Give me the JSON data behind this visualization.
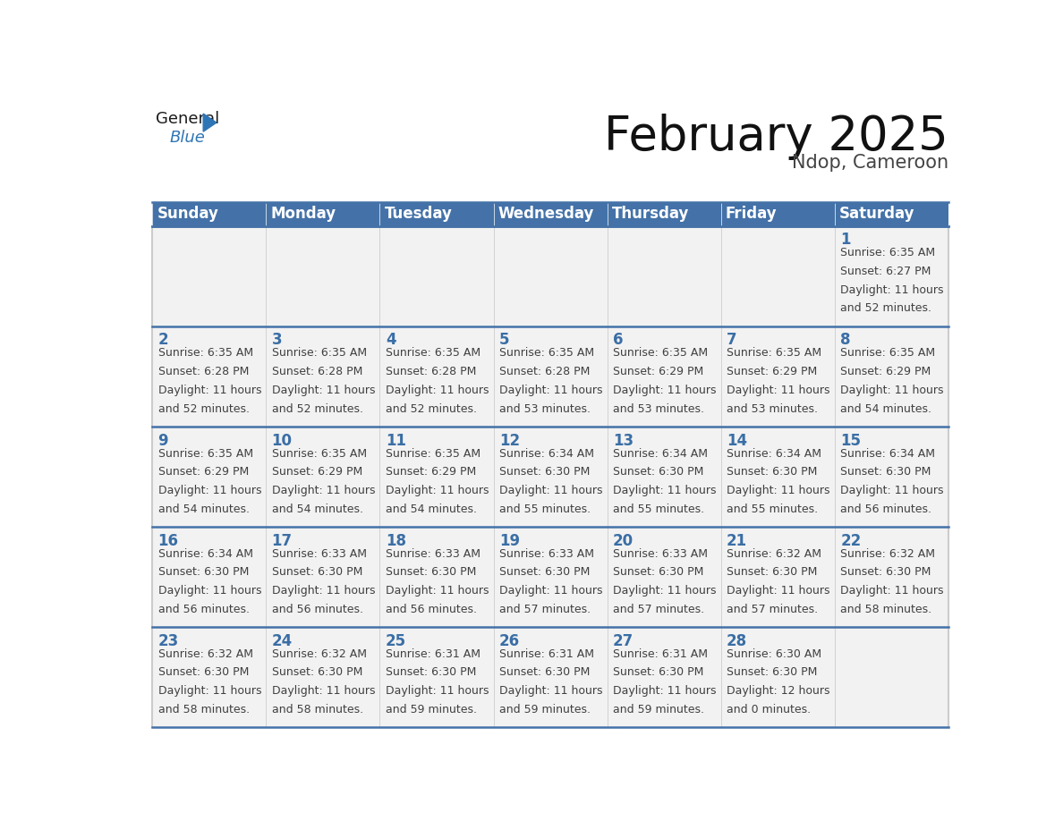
{
  "title": "February 2025",
  "subtitle": "Ndop, Cameroon",
  "days_of_week": [
    "Sunday",
    "Monday",
    "Tuesday",
    "Wednesday",
    "Thursday",
    "Friday",
    "Saturday"
  ],
  "header_bg": "#4472a8",
  "header_text": "#ffffff",
  "cell_bg": "#f2f2f2",
  "day_num_color": "#3a6ea5",
  "info_text_color": "#404040",
  "row_border_color": "#4472a8",
  "col_border_color": "#cccccc",
  "calendar_data": [
    [
      null,
      null,
      null,
      null,
      null,
      null,
      {
        "day": "1",
        "sunrise": "6:35 AM",
        "sunset": "6:27 PM",
        "daylight_line1": "Daylight: 11 hours",
        "daylight_line2": "and 52 minutes."
      }
    ],
    [
      {
        "day": "2",
        "sunrise": "6:35 AM",
        "sunset": "6:28 PM",
        "daylight_line1": "Daylight: 11 hours",
        "daylight_line2": "and 52 minutes."
      },
      {
        "day": "3",
        "sunrise": "6:35 AM",
        "sunset": "6:28 PM",
        "daylight_line1": "Daylight: 11 hours",
        "daylight_line2": "and 52 minutes."
      },
      {
        "day": "4",
        "sunrise": "6:35 AM",
        "sunset": "6:28 PM",
        "daylight_line1": "Daylight: 11 hours",
        "daylight_line2": "and 52 minutes."
      },
      {
        "day": "5",
        "sunrise": "6:35 AM",
        "sunset": "6:28 PM",
        "daylight_line1": "Daylight: 11 hours",
        "daylight_line2": "and 53 minutes."
      },
      {
        "day": "6",
        "sunrise": "6:35 AM",
        "sunset": "6:29 PM",
        "daylight_line1": "Daylight: 11 hours",
        "daylight_line2": "and 53 minutes."
      },
      {
        "day": "7",
        "sunrise": "6:35 AM",
        "sunset": "6:29 PM",
        "daylight_line1": "Daylight: 11 hours",
        "daylight_line2": "and 53 minutes."
      },
      {
        "day": "8",
        "sunrise": "6:35 AM",
        "sunset": "6:29 PM",
        "daylight_line1": "Daylight: 11 hours",
        "daylight_line2": "and 54 minutes."
      }
    ],
    [
      {
        "day": "9",
        "sunrise": "6:35 AM",
        "sunset": "6:29 PM",
        "daylight_line1": "Daylight: 11 hours",
        "daylight_line2": "and 54 minutes."
      },
      {
        "day": "10",
        "sunrise": "6:35 AM",
        "sunset": "6:29 PM",
        "daylight_line1": "Daylight: 11 hours",
        "daylight_line2": "and 54 minutes."
      },
      {
        "day": "11",
        "sunrise": "6:35 AM",
        "sunset": "6:29 PM",
        "daylight_line1": "Daylight: 11 hours",
        "daylight_line2": "and 54 minutes."
      },
      {
        "day": "12",
        "sunrise": "6:34 AM",
        "sunset": "6:30 PM",
        "daylight_line1": "Daylight: 11 hours",
        "daylight_line2": "and 55 minutes."
      },
      {
        "day": "13",
        "sunrise": "6:34 AM",
        "sunset": "6:30 PM",
        "daylight_line1": "Daylight: 11 hours",
        "daylight_line2": "and 55 minutes."
      },
      {
        "day": "14",
        "sunrise": "6:34 AM",
        "sunset": "6:30 PM",
        "daylight_line1": "Daylight: 11 hours",
        "daylight_line2": "and 55 minutes."
      },
      {
        "day": "15",
        "sunrise": "6:34 AM",
        "sunset": "6:30 PM",
        "daylight_line1": "Daylight: 11 hours",
        "daylight_line2": "and 56 minutes."
      }
    ],
    [
      {
        "day": "16",
        "sunrise": "6:34 AM",
        "sunset": "6:30 PM",
        "daylight_line1": "Daylight: 11 hours",
        "daylight_line2": "and 56 minutes."
      },
      {
        "day": "17",
        "sunrise": "6:33 AM",
        "sunset": "6:30 PM",
        "daylight_line1": "Daylight: 11 hours",
        "daylight_line2": "and 56 minutes."
      },
      {
        "day": "18",
        "sunrise": "6:33 AM",
        "sunset": "6:30 PM",
        "daylight_line1": "Daylight: 11 hours",
        "daylight_line2": "and 56 minutes."
      },
      {
        "day": "19",
        "sunrise": "6:33 AM",
        "sunset": "6:30 PM",
        "daylight_line1": "Daylight: 11 hours",
        "daylight_line2": "and 57 minutes."
      },
      {
        "day": "20",
        "sunrise": "6:33 AM",
        "sunset": "6:30 PM",
        "daylight_line1": "Daylight: 11 hours",
        "daylight_line2": "and 57 minutes."
      },
      {
        "day": "21",
        "sunrise": "6:32 AM",
        "sunset": "6:30 PM",
        "daylight_line1": "Daylight: 11 hours",
        "daylight_line2": "and 57 minutes."
      },
      {
        "day": "22",
        "sunrise": "6:32 AM",
        "sunset": "6:30 PM",
        "daylight_line1": "Daylight: 11 hours",
        "daylight_line2": "and 58 minutes."
      }
    ],
    [
      {
        "day": "23",
        "sunrise": "6:32 AM",
        "sunset": "6:30 PM",
        "daylight_line1": "Daylight: 11 hours",
        "daylight_line2": "and 58 minutes."
      },
      {
        "day": "24",
        "sunrise": "6:32 AM",
        "sunset": "6:30 PM",
        "daylight_line1": "Daylight: 11 hours",
        "daylight_line2": "and 58 minutes."
      },
      {
        "day": "25",
        "sunrise": "6:31 AM",
        "sunset": "6:30 PM",
        "daylight_line1": "Daylight: 11 hours",
        "daylight_line2": "and 59 minutes."
      },
      {
        "day": "26",
        "sunrise": "6:31 AM",
        "sunset": "6:30 PM",
        "daylight_line1": "Daylight: 11 hours",
        "daylight_line2": "and 59 minutes."
      },
      {
        "day": "27",
        "sunrise": "6:31 AM",
        "sunset": "6:30 PM",
        "daylight_line1": "Daylight: 11 hours",
        "daylight_line2": "and 59 minutes."
      },
      {
        "day": "28",
        "sunrise": "6:30 AM",
        "sunset": "6:30 PM",
        "daylight_line1": "Daylight: 12 hours",
        "daylight_line2": "and 0 minutes."
      },
      null
    ]
  ],
  "num_rows": 5,
  "num_cols": 7,
  "title_fontsize": 38,
  "subtitle_fontsize": 15,
  "header_fontsize": 12,
  "day_num_fontsize": 12,
  "info_fontsize": 9
}
